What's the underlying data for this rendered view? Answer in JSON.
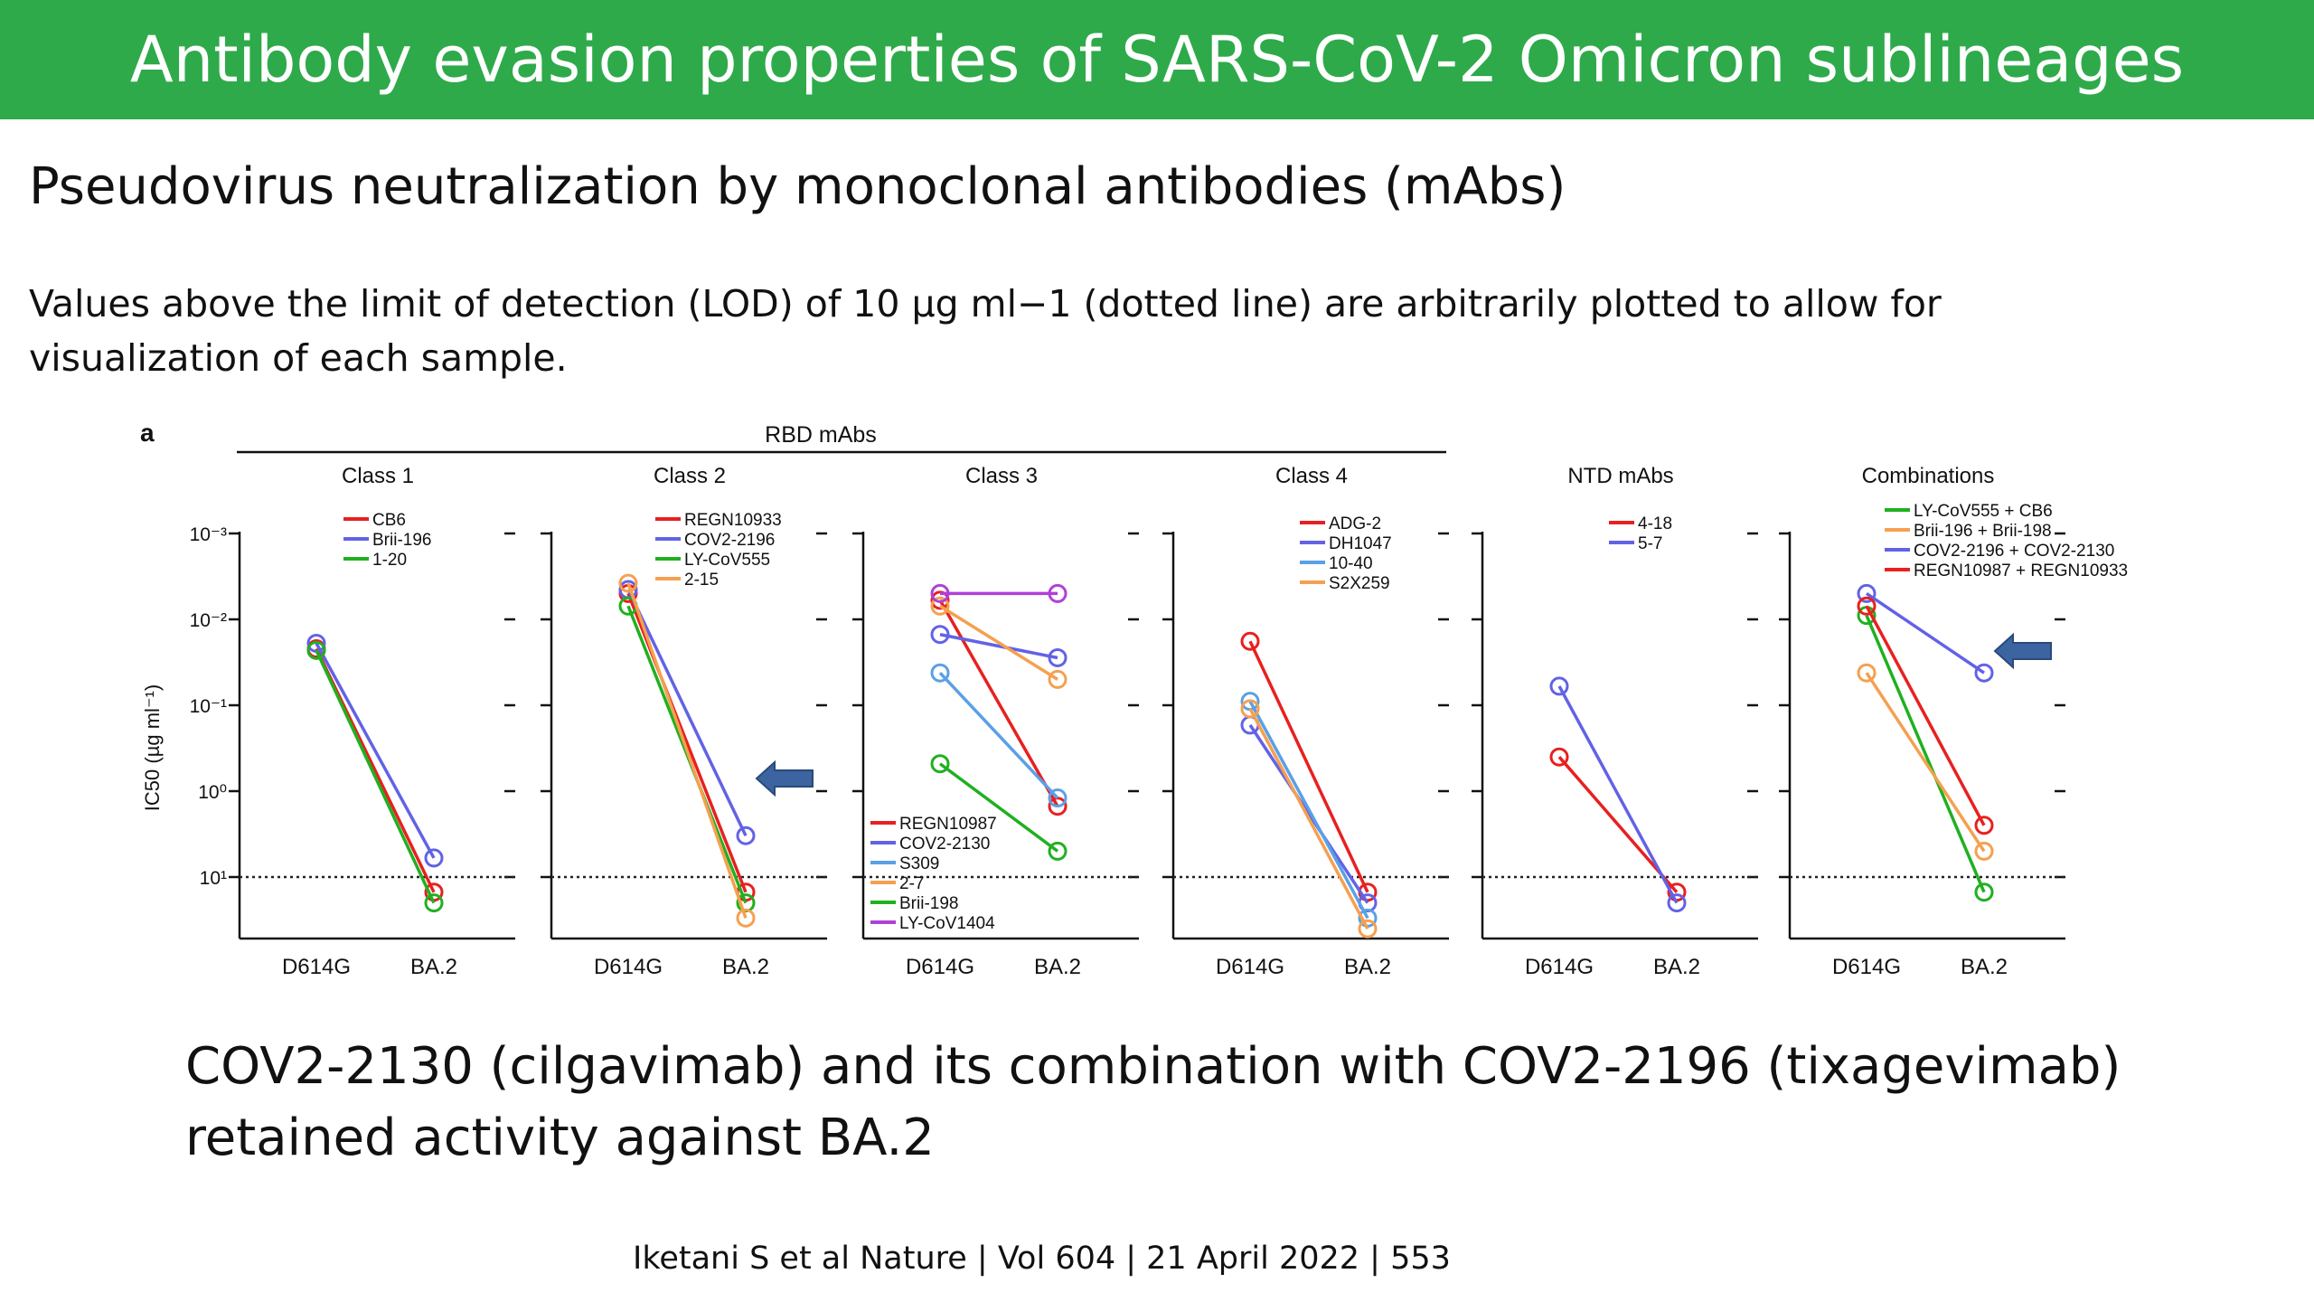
{
  "header": {
    "title": "Antibody evasion properties of SARS-CoV-2 Omicron sublineages"
  },
  "subtitle": "Pseudovirus neutralization by monoclonal antibodies (mAbs)",
  "note": "Values above the limit of detection (LOD) of 10 µg ml−1 (dotted line) are arbitrarily plotted to allow for visualization of each sample.",
  "figure": {
    "panel_letter": "a",
    "group_label": "RBD mAbs",
    "y_axis_label": "IC50 (µg ml⁻¹)",
    "y_ticks": [
      "10⁻³",
      "10⁻²",
      "10⁻¹",
      "10⁰",
      "10¹"
    ]
  },
  "conclusion": "COV2-2130 (cilgavimab) and its combination with COV2-2196 (tixagevimab) retained activity against BA.2",
  "citation": "Iketani S et al Nature | Vol 604 | 21 April 2022 | 553",
  "chart_data": [
    {
      "type": "line",
      "title": "Class 1",
      "categories": [
        "D614G",
        "BA.2"
      ],
      "yscale": "log-inverted",
      "ylim": [
        0.001,
        10
      ],
      "lod": 10,
      "legend_position": "top",
      "series": [
        {
          "name": "CB6",
          "color": "#e82020",
          "values": [
            0.022,
            15
          ]
        },
        {
          "name": "Brii-196",
          "color": "#6262e6",
          "values": [
            0.019,
            6
          ]
        },
        {
          "name": "1-20",
          "color": "#20b020",
          "values": [
            0.023,
            20
          ]
        }
      ]
    },
    {
      "type": "line",
      "title": "Class 2",
      "categories": [
        "D614G",
        "BA.2"
      ],
      "yscale": "log-inverted",
      "ylim": [
        0.001,
        10
      ],
      "lod": 10,
      "legend_position": "top",
      "arrow_at": "BA.2",
      "series": [
        {
          "name": "REGN10933",
          "color": "#e82020",
          "values": [
            0.005,
            15
          ]
        },
        {
          "name": "COV2-2196",
          "color": "#6262e6",
          "values": [
            0.0045,
            3.3
          ]
        },
        {
          "name": "LY-CoV555",
          "color": "#20b020",
          "values": [
            0.007,
            20
          ]
        },
        {
          "name": "2-15",
          "color": "#f5a050",
          "values": [
            0.0038,
            30
          ]
        }
      ]
    },
    {
      "type": "line",
      "title": "Class 3",
      "categories": [
        "D614G",
        "BA.2"
      ],
      "yscale": "log-inverted",
      "ylim": [
        0.001,
        10
      ],
      "lod": 10,
      "legend_position": "bottom",
      "series": [
        {
          "name": "REGN10987",
          "color": "#e82020",
          "values": [
            0.006,
            1.5
          ]
        },
        {
          "name": "COV2-2130",
          "color": "#6262e6",
          "values": [
            0.015,
            0.028
          ]
        },
        {
          "name": "S309",
          "color": "#5aa0e6",
          "values": [
            0.042,
            1.2
          ]
        },
        {
          "name": "2-7",
          "color": "#f5a050",
          "values": [
            0.007,
            0.05
          ]
        },
        {
          "name": "Brii-198",
          "color": "#20b020",
          "values": [
            0.48,
            5
          ]
        },
        {
          "name": "LY-CoV1404",
          "color": "#b040d8",
          "values": [
            0.005,
            0.005
          ]
        }
      ]
    },
    {
      "type": "line",
      "title": "Class 4",
      "categories": [
        "D614G",
        "BA.2"
      ],
      "yscale": "log-inverted",
      "ylim": [
        0.001,
        10
      ],
      "lod": 10,
      "legend_position": "top-right",
      "series": [
        {
          "name": "ADG-2",
          "color": "#e82020",
          "values": [
            0.018,
            15
          ]
        },
        {
          "name": "DH1047",
          "color": "#6262e6",
          "values": [
            0.17,
            20
          ]
        },
        {
          "name": "10-40",
          "color": "#5aa0e6",
          "values": [
            0.09,
            30
          ]
        },
        {
          "name": "S2X259",
          "color": "#f5a050",
          "values": [
            0.11,
            40
          ]
        }
      ]
    },
    {
      "type": "line",
      "title": "NTD mAbs",
      "categories": [
        "D614G",
        "BA.2"
      ],
      "yscale": "log-inverted",
      "ylim": [
        0.001,
        10
      ],
      "lod": 10,
      "legend_position": "top-right",
      "series": [
        {
          "name": "4-18",
          "color": "#e82020",
          "values": [
            0.4,
            15
          ]
        },
        {
          "name": "5-7",
          "color": "#6262e6",
          "values": [
            0.06,
            20
          ]
        }
      ]
    },
    {
      "type": "line",
      "title": "Combinations",
      "categories": [
        "D614G",
        "BA.2"
      ],
      "yscale": "log-inverted",
      "ylim": [
        0.001,
        10
      ],
      "lod": 10,
      "legend_position": "top",
      "arrow_at": "BA.2",
      "series": [
        {
          "name": "LY-CoV555 + CB6",
          "color": "#20b020",
          "values": [
            0.009,
            15
          ]
        },
        {
          "name": "Brii-196 + Brii-198",
          "color": "#f5a050",
          "values": [
            0.042,
            5
          ]
        },
        {
          "name": "COV2-2196 + COV2-2130",
          "color": "#6262e6",
          "values": [
            0.005,
            0.042
          ]
        },
        {
          "name": "REGN10987 + REGN10933",
          "color": "#e82020",
          "values": [
            0.007,
            2.5
          ]
        }
      ]
    }
  ]
}
